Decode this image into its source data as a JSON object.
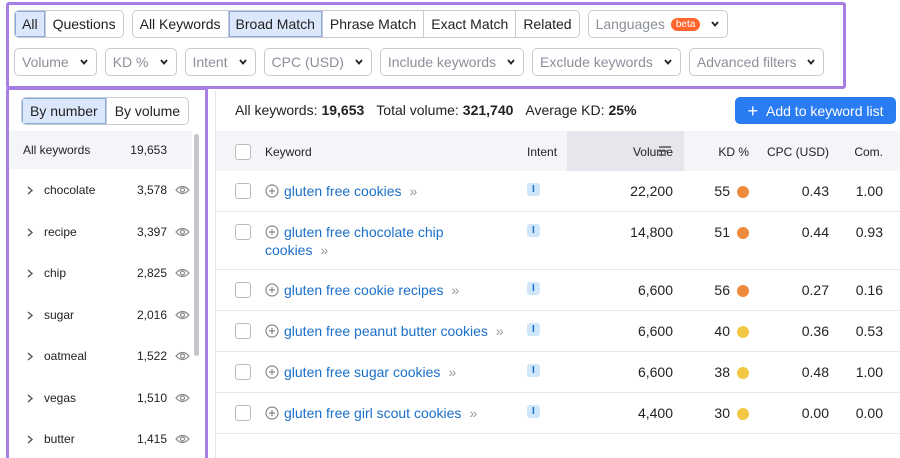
{
  "tabs": [
    "All",
    "Questions"
  ],
  "match_tabs": [
    "All Keywords",
    "Broad Match",
    "Phrase Match",
    "Exact Match",
    "Related"
  ],
  "languages": {
    "label": "Languages",
    "badge": "beta"
  },
  "filters": [
    "Volume",
    "KD %",
    "Intent",
    "CPC (USD)",
    "Include keywords",
    "Exclude keywords",
    "Advanced filters"
  ],
  "group_toggle": [
    "By number",
    "By volume"
  ],
  "groups": {
    "header": {
      "label": "All keywords",
      "count": "19,653"
    },
    "items": [
      {
        "label": "chocolate",
        "count": "3,578"
      },
      {
        "label": "recipe",
        "count": "3,397"
      },
      {
        "label": "chip",
        "count": "2,825"
      },
      {
        "label": "sugar",
        "count": "2,016"
      },
      {
        "label": "oatmeal",
        "count": "1,522"
      },
      {
        "label": "vegas",
        "count": "1,510"
      },
      {
        "label": "butter",
        "count": "1,415"
      }
    ]
  },
  "summary": [
    {
      "label": "All keywords:",
      "value": "19,653"
    },
    {
      "label": "Total volume:",
      "value": "321,740"
    },
    {
      "label": "Average KD:",
      "value": "25%"
    }
  ],
  "button": "Add to keyword list",
  "table": {
    "columns": [
      "Keyword",
      "Intent",
      "Volume",
      "KD %",
      "CPC (USD)",
      "Com."
    ],
    "rows": [
      {
        "keyword": "gluten free cookies",
        "intent": "I",
        "volume": "22,200",
        "kd": "55",
        "kd_color": "#ef8a3c",
        "cpc": "0.43",
        "com": "1.00"
      },
      {
        "keyword": "gluten free chocolate chip cookies",
        "intent": "I",
        "volume": "14,800",
        "kd": "51",
        "kd_color": "#ef8a3c",
        "cpc": "0.44",
        "com": "0.93"
      },
      {
        "keyword": "gluten free cookie recipes",
        "intent": "I",
        "volume": "6,600",
        "kd": "56",
        "kd_color": "#ef8a3c",
        "cpc": "0.27",
        "com": "0.16"
      },
      {
        "keyword": "gluten free peanut butter cookies",
        "intent": "I",
        "volume": "6,600",
        "kd": "40",
        "kd_color": "#f2c744",
        "cpc": "0.36",
        "com": "0.53"
      },
      {
        "keyword": "gluten free sugar cookies",
        "intent": "I",
        "volume": "6,600",
        "kd": "38",
        "kd_color": "#f2c744",
        "cpc": "0.48",
        "com": "1.00"
      },
      {
        "keyword": "gluten free girl scout cookies",
        "intent": "I",
        "volume": "4,400",
        "kd": "30",
        "kd_color": "#f2c744",
        "cpc": "0.00",
        "com": "0.00"
      }
    ]
  }
}
